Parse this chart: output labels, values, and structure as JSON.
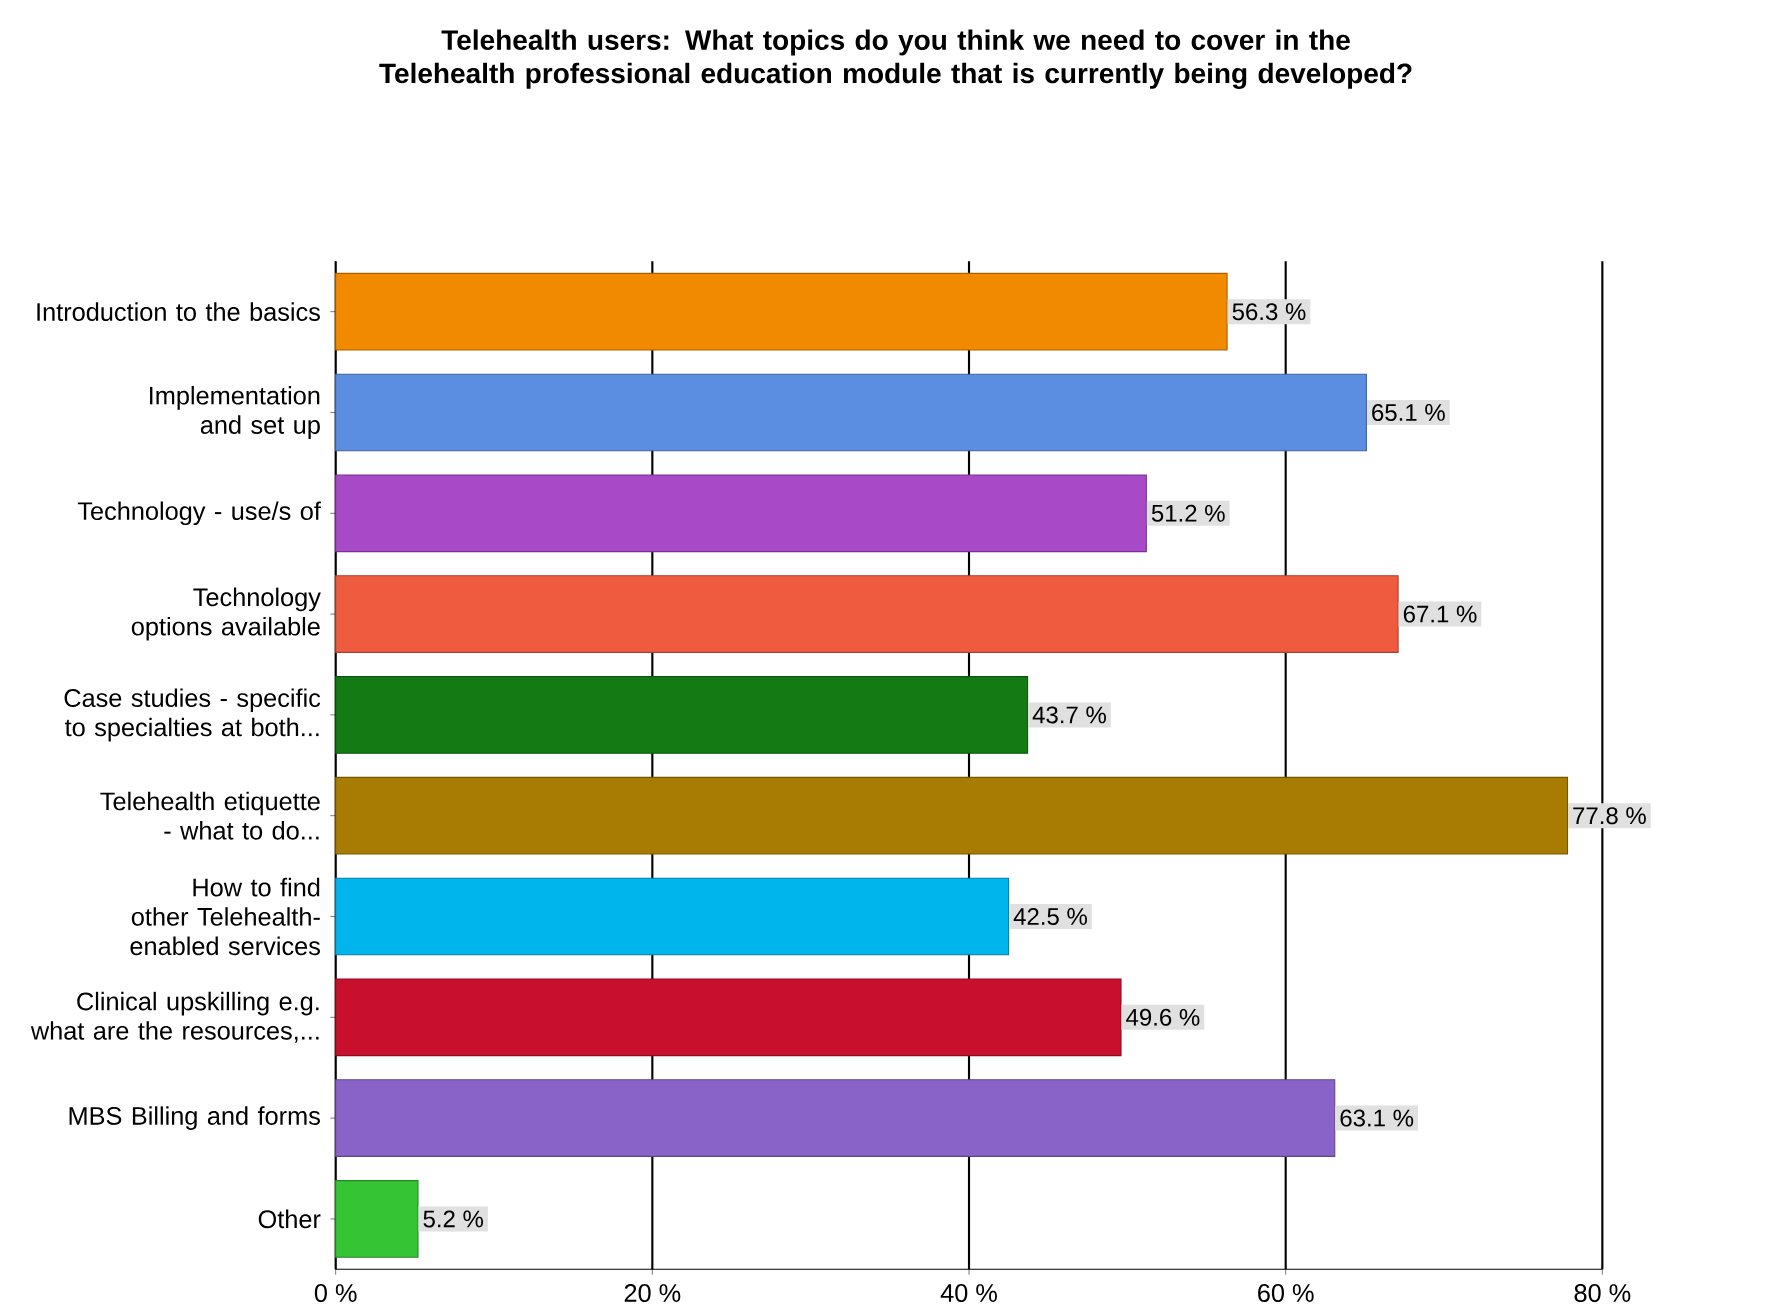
{
  "chart_data": {
    "type": "bar",
    "orientation": "horizontal",
    "title": "Telehealth users: What topics do you think we need to cover in the Telehealth professional education module that is currently being developed?",
    "categories": [
      "Introduction to the basics",
      "Implementation and set up",
      "Technology - use/s of",
      "Technology options available",
      "Case studies - specific to specialties at both...",
      "Telehealth etiquette - what to do...",
      "How to find other Telehealth-enabled services",
      "Clinical upskilling e.g. what are the resources,...",
      "MBS Billing and forms",
      "Other"
    ],
    "values": [
      56.3,
      65.1,
      51.2,
      67.1,
      43.7,
      77.8,
      42.5,
      49.6,
      63.1,
      5.2
    ],
    "value_labels": [
      "56.3 %",
      "65.1 %",
      "51.2 %",
      "67.1 %",
      "43.7 %",
      "77.8 %",
      "42.5 %",
      "49.6 %",
      "63.1 %",
      "5.2 %"
    ],
    "colors": [
      "#f28a00",
      "#5b8de0",
      "#a84ac8",
      "#ee5b3f",
      "#137a14",
      "#a87c02",
      "#00b4ec",
      "#c8102e",
      "#8963c8",
      "#35c434"
    ],
    "xlim": [
      0,
      80
    ],
    "xticks": [
      {
        "value": 0,
        "label": "0 %"
      },
      {
        "value": 20,
        "label": "20 %"
      },
      {
        "value": 40,
        "label": "40 %"
      },
      {
        "value": 60,
        "label": "60 %"
      },
      {
        "value": 80,
        "label": "80 %"
      }
    ],
    "grid": "x"
  }
}
